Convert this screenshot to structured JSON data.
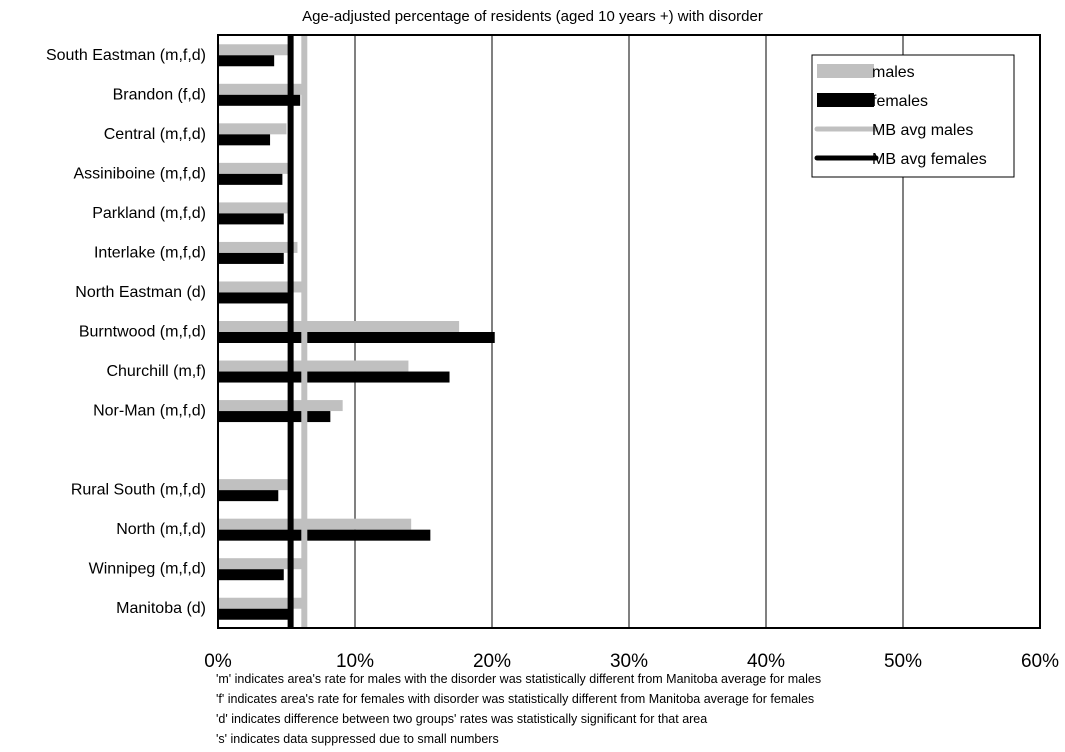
{
  "chart_data": {
    "type": "bar",
    "orientation": "horizontal",
    "subtitle": "Age-adjusted percentage of residents (aged 10 years +) with disorder",
    "categories": [
      "South Eastman (m,f,d)",
      "Brandon (f,d)",
      "Central (m,f,d)",
      "Assiniboine (m,f,d)",
      "Parkland (m,f,d)",
      "Interlake (m,f,d)",
      "North Eastman (d)",
      "Burntwood (m,f,d)",
      "Churchill (m,f)",
      "Nor-Man (m,f,d)",
      "",
      "Rural South (m,f,d)",
      "North (m,f,d)",
      "Winnipeg (m,f,d)",
      "Manitoba (d)"
    ],
    "series": [
      {
        "name": "males",
        "color": "#c0c0c0",
        "values": [
          5.3,
          6.3,
          5.0,
          5.1,
          5.5,
          5.8,
          6.4,
          17.6,
          13.9,
          9.1,
          null,
          5.1,
          14.1,
          6.3,
          6.3
        ]
      },
      {
        "name": "females",
        "color": "#000000",
        "values": [
          4.1,
          6.0,
          3.8,
          4.7,
          4.8,
          4.8,
          5.2,
          20.2,
          16.9,
          8.2,
          null,
          4.4,
          15.5,
          4.8,
          5.3
        ]
      }
    ],
    "reference_lines": [
      {
        "name": "MB avg males",
        "value": 6.3,
        "color": "#c0c0c0"
      },
      {
        "name": "MB avg females",
        "value": 5.3,
        "color": "#000000"
      }
    ],
    "xlim": [
      0,
      60
    ],
    "xticks": [
      "0%",
      "10%",
      "20%",
      "30%",
      "40%",
      "50%",
      "60%"
    ],
    "xtick_values": [
      0,
      10,
      20,
      30,
      40,
      50,
      60
    ],
    "grid": "vertical",
    "legend_position": "top-right",
    "footnotes": [
      "'m' indicates area's rate for males with the disorder was statistically different from Manitoba average for males",
      "'f' indicates area's rate for females with disorder was statistically different from Manitoba average for females",
      "'d' indicates difference between two groups' rates was statistically significant for that area",
      "'s' indicates data suppressed due to small numbers"
    ]
  }
}
